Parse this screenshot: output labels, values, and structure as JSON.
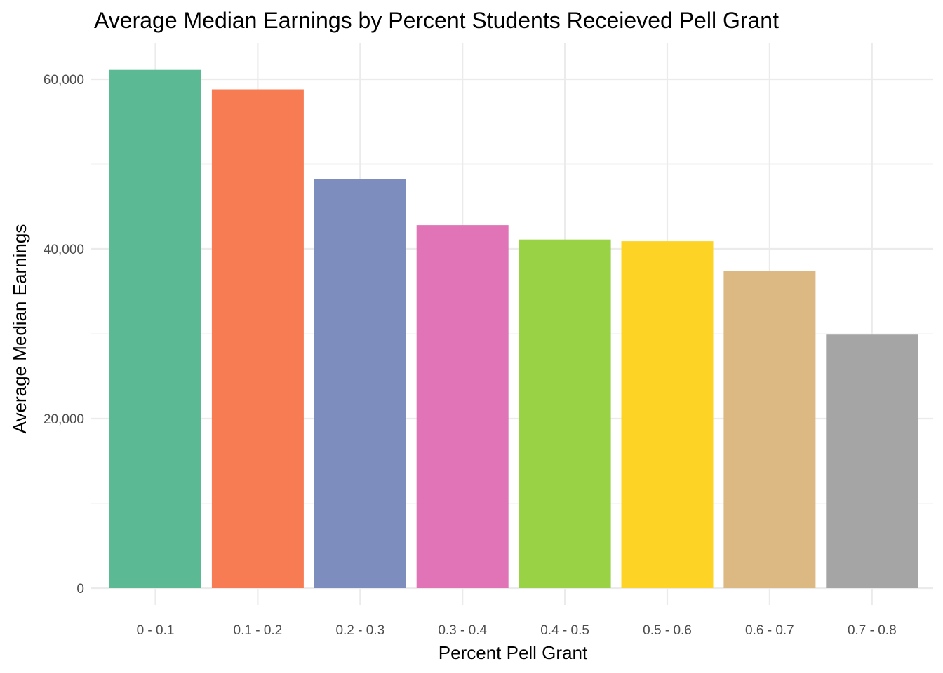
{
  "chart_data": {
    "type": "bar",
    "title": "Average Median Earnings by Percent Students Receieved Pell Grant",
    "xlabel": "Percent Pell Grant",
    "ylabel": "Average Median Earnings",
    "categories": [
      "0 - 0.1",
      "0.1 - 0.2",
      "0.2 - 0.3",
      "0.3 - 0.4",
      "0.4 - 0.5",
      "0.5 - 0.6",
      "0.6 - 0.7",
      "0.7 - 0.8"
    ],
    "values": [
      61100,
      58800,
      48200,
      42800,
      41100,
      40900,
      37400,
      29900
    ],
    "colors": [
      "#5bba93",
      "#f77b53",
      "#7d8ebe",
      "#e074b6",
      "#9ad245",
      "#fdd426",
      "#dcb883",
      "#a5a5a5"
    ],
    "ylim": [
      0,
      64000
    ],
    "yticks": [
      0,
      20000,
      40000,
      60000
    ],
    "ytick_labels": [
      "0",
      "20,000",
      "40,000",
      "60,000"
    ],
    "legend": "none",
    "grid": true
  }
}
